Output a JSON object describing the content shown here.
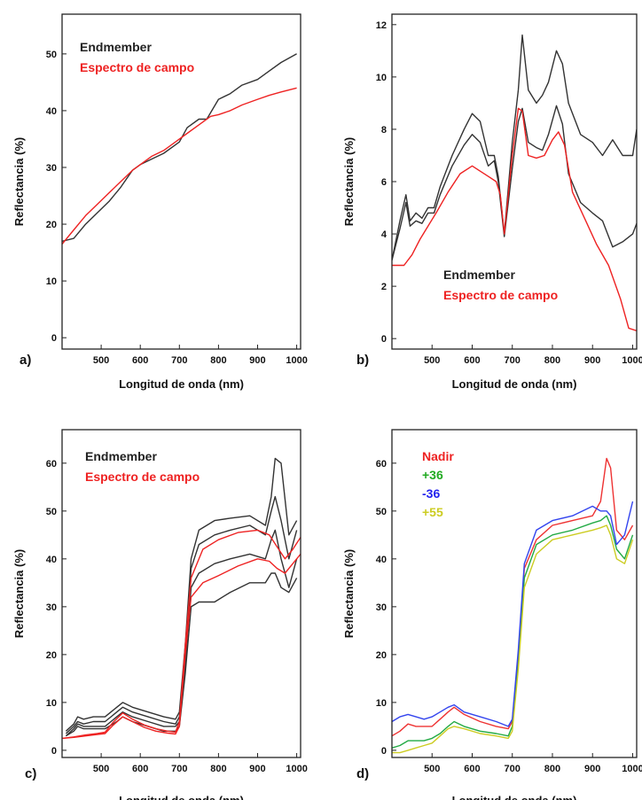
{
  "chart_data": [
    {
      "panel_label": "a)",
      "type": "line",
      "xlabel": "Longitud de onda (nm)",
      "ylabel": "Reflectancia (%)",
      "xlim": [
        400,
        1010
      ],
      "ylim": [
        -2,
        57
      ],
      "x_ticks": [
        500,
        600,
        700,
        800,
        900,
        1000
      ],
      "y_ticks": [
        0,
        10,
        20,
        30,
        40,
        50
      ],
      "legend": [
        {
          "label": "Endmember",
          "color": "#222222"
        },
        {
          "label": "Espectro de campo",
          "color": "#ee2222"
        }
      ],
      "legend_position": "top-left",
      "series": [
        {
          "name": "Endmember",
          "color": "#333333",
          "width": 1.2,
          "x": [
            400,
            430,
            460,
            490,
            520,
            550,
            580,
            600,
            630,
            660,
            690,
            700,
            720,
            750,
            770,
            800,
            830,
            860,
            900,
            930,
            960,
            1000
          ],
          "y": [
            17,
            17.5,
            20,
            22,
            24,
            26.5,
            29.5,
            30.5,
            31.5,
            32.5,
            34,
            34.5,
            37,
            38.5,
            38.5,
            42,
            43,
            44.5,
            45.5,
            47,
            48.5,
            50
          ]
        },
        {
          "name": "Espectro de campo",
          "color": "#ee2222",
          "width": 1.6,
          "x": [
            400,
            430,
            460,
            490,
            520,
            550,
            580,
            600,
            630,
            660,
            690,
            720,
            750,
            780,
            800,
            830,
            860,
            900,
            930,
            960,
            1000
          ],
          "y": [
            16.5,
            19,
            21.5,
            23.5,
            25.5,
            27.5,
            29.5,
            30.5,
            32,
            33,
            34.5,
            36,
            37.5,
            39,
            39.3,
            40,
            41,
            42,
            42.7,
            43.3,
            44
          ]
        }
      ]
    },
    {
      "panel_label": "b)",
      "type": "line",
      "xlabel": "Longitud de onda (nm)",
      "ylabel": "Reflectancia (%)",
      "xlim": [
        400,
        1010
      ],
      "ylim": [
        -0.4,
        12.4
      ],
      "x_ticks": [
        500,
        600,
        700,
        800,
        900,
        1000
      ],
      "y_ticks": [
        0,
        2,
        4,
        6,
        8,
        10,
        12
      ],
      "legend": [
        {
          "label": "Endmember",
          "color": "#222222"
        },
        {
          "label": "Espectro de campo",
          "color": "#ee2222"
        }
      ],
      "legend_position": "bottom-right",
      "series": [
        {
          "name": "Endmember",
          "color": "#333333",
          "width": 1.2,
          "x": [
            400,
            420,
            435,
            445,
            460,
            475,
            490,
            505,
            520,
            550,
            580,
            600,
            620,
            640,
            655,
            665,
            680,
            700,
            715,
            725,
            740,
            760,
            775,
            790,
            810,
            825,
            840,
            870,
            900,
            925,
            950,
            975,
            1000,
            1010
          ],
          "y": [
            3,
            4.5,
            5.5,
            4.5,
            4.8,
            4.6,
            5,
            5,
            5.8,
            7,
            8,
            8.6,
            8.3,
            7,
            7,
            6.2,
            4,
            7.5,
            9.5,
            11.6,
            9.5,
            9,
            9.3,
            9.8,
            11,
            10.5,
            9,
            7.8,
            7.5,
            7,
            7.6,
            7,
            7,
            8
          ]
        },
        {
          "name": "Endmember",
          "color": "#333333",
          "width": 1.2,
          "x": [
            400,
            420,
            435,
            445,
            460,
            475,
            490,
            505,
            520,
            550,
            580,
            600,
            620,
            640,
            655,
            665,
            680,
            700,
            715,
            725,
            740,
            760,
            775,
            790,
            810,
            825,
            840,
            870,
            900,
            925,
            950,
            975,
            1000,
            1010
          ],
          "y": [
            3,
            4.2,
            5.2,
            4.3,
            4.5,
            4.4,
            4.8,
            4.8,
            5.5,
            6.6,
            7.4,
            7.8,
            7.5,
            6.6,
            6.8,
            6,
            3.9,
            6.5,
            8.3,
            8.8,
            7.5,
            7.3,
            7.2,
            7.8,
            8.9,
            8.2,
            6.3,
            5.2,
            4.8,
            4.5,
            3.5,
            3.7,
            4,
            4.4
          ]
        },
        {
          "name": "Espectro de campo",
          "color": "#ee2222",
          "width": 1.6,
          "x": [
            400,
            430,
            450,
            470,
            490,
            510,
            540,
            570,
            600,
            620,
            640,
            660,
            670,
            680,
            700,
            715,
            725,
            740,
            760,
            780,
            800,
            815,
            830,
            850,
            880,
            910,
            940,
            970,
            990,
            1010
          ],
          "y": [
            2.8,
            2.8,
            3.2,
            3.8,
            4.3,
            4.8,
            5.6,
            6.3,
            6.6,
            6.4,
            6.2,
            6,
            5.5,
            4,
            7,
            8.8,
            8.7,
            7,
            6.9,
            7,
            7.6,
            7.9,
            7.4,
            5.6,
            4.6,
            3.6,
            2.8,
            1.5,
            0.4,
            0.3
          ]
        }
      ]
    },
    {
      "panel_label": "c)",
      "type": "line",
      "xlabel": "Longitud de onda (nm)",
      "ylabel": "Reflectancia (%)",
      "xlim": [
        400,
        1010
      ],
      "ylim": [
        -1.5,
        67
      ],
      "x_ticks": [
        500,
        600,
        700,
        800,
        900,
        1000
      ],
      "y_ticks": [
        0,
        10,
        20,
        30,
        40,
        50,
        60
      ],
      "legend": [
        {
          "label": "Endmember",
          "color": "#222222"
        },
        {
          "label": "Espectro de campo",
          "color": "#ee2222"
        }
      ],
      "legend_position": "top-left",
      "series": [
        {
          "name": "Endmember",
          "color": "#333333",
          "width": 1.1,
          "x": [
            410,
            430,
            440,
            455,
            480,
            510,
            540,
            555,
            580,
            620,
            660,
            690,
            700,
            715,
            730,
            750,
            790,
            830,
            880,
            920,
            935,
            945,
            960,
            980,
            1000
          ],
          "y": [
            4,
            5.5,
            7,
            6.5,
            7,
            7,
            9,
            10,
            9,
            8,
            7,
            6.5,
            8,
            22,
            40,
            46,
            48,
            48.5,
            49,
            47,
            53,
            61,
            60,
            45,
            48
          ]
        },
        {
          "name": "Endmember",
          "color": "#333333",
          "width": 1.1,
          "x": [
            410,
            430,
            440,
            455,
            480,
            510,
            540,
            555,
            580,
            620,
            660,
            690,
            700,
            715,
            730,
            750,
            790,
            830,
            880,
            920,
            935,
            945,
            960,
            980,
            1000
          ],
          "y": [
            3.5,
            5,
            6,
            5.5,
            6,
            6,
            8,
            9,
            8,
            7,
            6,
            5.5,
            7,
            20,
            38,
            43,
            45,
            46,
            47,
            45,
            50,
            53,
            48,
            40,
            46
          ]
        },
        {
          "name": "Endmember",
          "color": "#333333",
          "width": 1.1,
          "x": [
            410,
            430,
            440,
            455,
            480,
            510,
            540,
            555,
            580,
            620,
            660,
            690,
            700,
            715,
            730,
            750,
            790,
            830,
            880,
            920,
            935,
            945,
            960,
            980,
            1000
          ],
          "y": [
            3,
            4.5,
            5.5,
            5,
            5,
            5,
            7,
            8,
            7,
            6,
            5,
            5,
            6,
            18,
            34,
            37,
            39,
            40,
            41,
            40,
            44,
            46,
            40,
            34,
            40
          ]
        },
        {
          "name": "Endmember",
          "color": "#333333",
          "width": 1.1,
          "x": [
            410,
            430,
            440,
            455,
            480,
            510,
            540,
            555,
            580,
            620,
            660,
            690,
            700,
            715,
            730,
            750,
            790,
            830,
            880,
            920,
            935,
            945,
            960,
            980,
            1000
          ],
          "y": [
            3,
            4,
            5,
            4.5,
            4.5,
            4.5,
            6,
            7,
            6,
            5,
            4,
            4,
            5,
            16,
            30,
            31,
            31,
            33,
            35,
            35,
            37,
            37,
            34,
            33,
            36
          ]
        },
        {
          "name": "Espectro de campo",
          "color": "#ee2222",
          "width": 1.6,
          "x": [
            400,
            430,
            460,
            490,
            510,
            530,
            555,
            580,
            610,
            640,
            670,
            690,
            700,
            715,
            730,
            760,
            800,
            850,
            900,
            930,
            950,
            970,
            990,
            1010
          ],
          "y": [
            2.5,
            2.8,
            3.2,
            3.5,
            3.8,
            5.8,
            7.8,
            6.5,
            5.3,
            4.5,
            4,
            3.8,
            6,
            22,
            36,
            42,
            44,
            45.5,
            46,
            45,
            42.5,
            40,
            42,
            44.5
          ]
        },
        {
          "name": "Espectro de campo",
          "color": "#ee2222",
          "width": 1.6,
          "x": [
            400,
            430,
            460,
            490,
            510,
            530,
            555,
            580,
            610,
            640,
            670,
            690,
            700,
            715,
            730,
            760,
            800,
            850,
            900,
            930,
            950,
            970,
            990,
            1010
          ],
          "y": [
            2.5,
            2.7,
            3,
            3.3,
            3.5,
            5.2,
            7,
            6,
            4.8,
            4,
            3.6,
            3.4,
            5,
            20,
            32,
            35,
            36.5,
            38.5,
            40,
            39.5,
            38,
            37,
            39,
            41
          ]
        }
      ]
    },
    {
      "panel_label": "d)",
      "type": "line",
      "xlabel": "Longitud de onda (nm)",
      "ylabel": "Reflectancia (%)",
      "xlim": [
        400,
        1010
      ],
      "ylim": [
        -1.5,
        67
      ],
      "x_ticks": [
        500,
        600,
        700,
        800,
        900,
        1000
      ],
      "y_ticks": [
        0,
        10,
        20,
        30,
        40,
        50,
        60
      ],
      "legend": [
        {
          "label": "Nadir",
          "color": "#ee2222"
        },
        {
          "label": "+36",
          "color": "#22aa22"
        },
        {
          "label": "-36",
          "color": "#2222ee"
        },
        {
          "label": "+55",
          "color": "#cccc22"
        }
      ],
      "legend_position": "top-left",
      "series": [
        {
          "name": "Nadir",
          "color": "#ee3333",
          "width": 1.4,
          "x": [
            400,
            420,
            440,
            460,
            480,
            500,
            520,
            540,
            555,
            580,
            620,
            660,
            690,
            700,
            715,
            730,
            760,
            800,
            850,
            900,
            920,
            935,
            945,
            960,
            980,
            1000
          ],
          "y": [
            3,
            4,
            5.5,
            5,
            5,
            5,
            6.5,
            8,
            9,
            7.5,
            6,
            5,
            4.5,
            6,
            20,
            38,
            44,
            47,
            48,
            49,
            52,
            61,
            59,
            46,
            44,
            47
          ]
        },
        {
          "name": "+36",
          "color": "#22aa44",
          "width": 1.3,
          "x": [
            400,
            420,
            440,
            460,
            480,
            500,
            520,
            540,
            555,
            580,
            620,
            660,
            690,
            700,
            715,
            730,
            760,
            800,
            850,
            900,
            920,
            935,
            945,
            960,
            980,
            1000
          ],
          "y": [
            0.5,
            1,
            2,
            2,
            2,
            2.5,
            3.5,
            5,
            6,
            5,
            4,
            3.5,
            3,
            5,
            18,
            36,
            43,
            45,
            46,
            47.5,
            48,
            49,
            47,
            42,
            40,
            45
          ]
        },
        {
          "name": "-36",
          "color": "#3344ee",
          "width": 1.3,
          "x": [
            400,
            420,
            440,
            460,
            480,
            500,
            520,
            540,
            555,
            580,
            620,
            660,
            690,
            700,
            715,
            730,
            760,
            800,
            850,
            900,
            920,
            935,
            945,
            960,
            980,
            1000
          ],
          "y": [
            6,
            7,
            7.5,
            7,
            6.5,
            7,
            8,
            9,
            9.5,
            8,
            7,
            6,
            5,
            6.5,
            21,
            39,
            46,
            48,
            49,
            51,
            50,
            50,
            49,
            43,
            45,
            52
          ]
        },
        {
          "name": "+55",
          "color": "#cccc22",
          "width": 1.3,
          "x": [
            400,
            420,
            440,
            460,
            480,
            500,
            520,
            540,
            555,
            580,
            620,
            660,
            690,
            700,
            715,
            730,
            760,
            800,
            850,
            900,
            920,
            935,
            945,
            960,
            980,
            1000
          ],
          "y": [
            -0.5,
            -0.5,
            0,
            0.5,
            1,
            1.5,
            3,
            4.5,
            5,
            4.5,
            3.5,
            3,
            2.5,
            4,
            17,
            34,
            41,
            44,
            45,
            46,
            46.5,
            47,
            45,
            40,
            39,
            44
          ]
        }
      ]
    }
  ]
}
